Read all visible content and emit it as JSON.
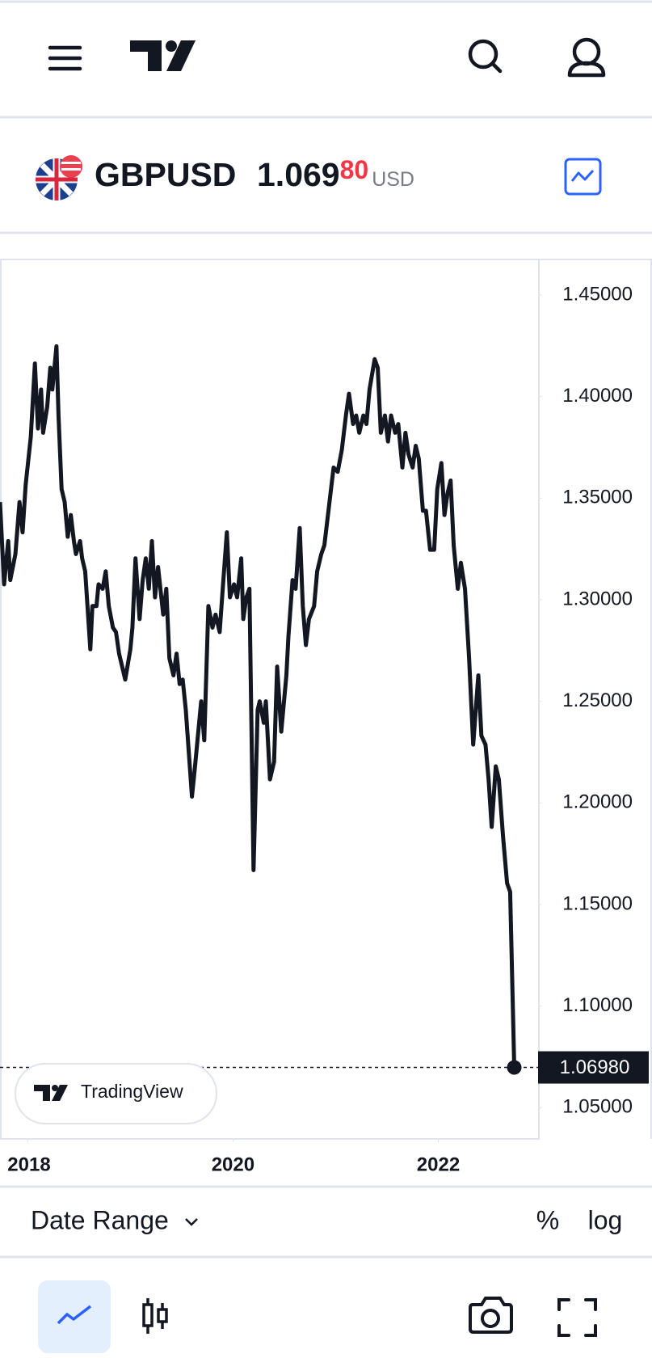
{
  "header": {
    "ticker": "GBPUSD",
    "price_main": "1.069",
    "price_highlight": "80",
    "currency": "USD"
  },
  "chart_data": {
    "type": "line",
    "x": [
      2017.73,
      2017.77,
      2017.81,
      2017.83,
      2017.88,
      2017.92,
      2017.95,
      2017.98,
      2018.03,
      2018.07,
      2018.1,
      2018.13,
      2018.15,
      2018.19,
      2018.22,
      2018.24,
      2018.28,
      2018.3,
      2018.33,
      2018.36,
      2018.39,
      2018.42,
      2018.45,
      2018.47,
      2018.51,
      2018.53,
      2018.56,
      2018.61,
      2018.63,
      2018.67,
      2018.69,
      2018.73,
      2018.76,
      2018.79,
      2018.83,
      2018.86,
      2018.89,
      2018.95,
      2019.0,
      2019.02,
      2019.05,
      2019.09,
      2019.12,
      2019.15,
      2019.18,
      2019.21,
      2019.24,
      2019.27,
      2019.32,
      2019.35,
      2019.38,
      2019.42,
      2019.45,
      2019.48,
      2019.51,
      2019.54,
      2019.6,
      2019.63,
      2019.65,
      2019.69,
      2019.72,
      2019.76,
      2019.8,
      2019.83,
      2019.87,
      2019.9,
      2019.94,
      2019.97,
      2020.01,
      2020.04,
      2020.08,
      2020.1,
      2020.13,
      2020.16,
      2020.2,
      2020.24,
      2020.26,
      2020.3,
      2020.32,
      2020.36,
      2020.4,
      2020.43,
      2020.47,
      2020.52,
      2020.54,
      2020.58,
      2020.61,
      2020.65,
      2020.68,
      2020.71,
      2020.74,
      2020.79,
      2020.82,
      2020.86,
      2020.89,
      2020.93,
      2020.95,
      2020.98,
      2021.02,
      2021.06,
      2021.1,
      2021.13,
      2021.17,
      2021.2,
      2021.23,
      2021.27,
      2021.3,
      2021.33,
      2021.38,
      2021.41,
      2021.44,
      2021.48,
      2021.51,
      2021.54,
      2021.58,
      2021.61,
      2021.65,
      2021.68,
      2021.71,
      2021.75,
      2021.78,
      2021.81,
      2021.85,
      2021.88,
      2021.92,
      2021.96,
      2021.99,
      2022.03,
      2022.06,
      2022.09,
      2022.12,
      2022.15,
      2022.19,
      2022.22,
      2022.26,
      2022.3,
      2022.34,
      2022.39,
      2022.42,
      2022.46,
      2022.49,
      2022.52,
      2022.56,
      2022.59,
      2022.63,
      2022.67,
      2022.7,
      2022.74
    ],
    "values": [
      1.3481,
      1.3076,
      1.3289,
      1.3097,
      1.3225,
      1.3481,
      1.3332,
      1.3566,
      1.3801,
      1.4163,
      1.3843,
      1.4035,
      1.3822,
      1.395,
      1.4142,
      1.4035,
      1.4248,
      1.3907,
      1.3545,
      1.3481,
      1.331,
      1.3417,
      1.3289,
      1.3225,
      1.3289,
      1.3204,
      1.314,
      1.2756,
      1.2969,
      1.2969,
      1.3076,
      1.3054,
      1.314,
      1.2969,
      1.2863,
      1.2841,
      1.2735,
      1.2607,
      1.2756,
      1.2863,
      1.3204,
      1.2905,
      1.3097,
      1.3204,
      1.3054,
      1.3289,
      1.3012,
      1.3161,
      1.2927,
      1.3054,
      1.2713,
      1.2628,
      1.2735,
      1.2585,
      1.2607,
      1.2458,
      1.2031,
      1.218,
      1.2287,
      1.25,
      1.2308,
      1.2969,
      1.2863,
      1.2927,
      1.2841,
      1.3054,
      1.3332,
      1.3012,
      1.3076,
      1.3012,
      1.3204,
      1.2905,
      1.3012,
      1.3054,
      1.1669,
      1.2458,
      1.25,
      1.2394,
      1.25,
      1.2116,
      1.2202,
      1.2671,
      1.2351,
      1.2628,
      1.282,
      1.3097,
      1.3054,
      1.3353,
      1.2969,
      1.2777,
      1.2905,
      1.2969,
      1.314,
      1.3225,
      1.3268,
      1.3438,
      1.3524,
      1.3651,
      1.363,
      1.3737,
      1.3907,
      1.4014,
      1.3865,
      1.3907,
      1.3822,
      1.3907,
      1.3865,
      1.4035,
      1.4184,
      1.4142,
      1.3822,
      1.3907,
      1.3779,
      1.3907,
      1.3822,
      1.3865,
      1.3651,
      1.3822,
      1.3715,
      1.3651,
      1.3758,
      1.3694,
      1.3438,
      1.3438,
      1.3246,
      1.3246,
      1.3545,
      1.3673,
      1.3417,
      1.3524,
      1.3587,
      1.3268,
      1.3054,
      1.3182,
      1.3054,
      1.2713,
      1.2287,
      1.2628,
      1.233,
      1.2287,
      1.2116,
      1.1882,
      1.218,
      1.2116,
      1.1839,
      1.1605,
      1.1562,
      1.0698
    ],
    "color": "#131722",
    "xlim": [
      2017.73,
      2022.98
    ],
    "xticks": [
      2018,
      2020,
      2022
    ],
    "ylim": [
      1.0346,
      1.4675
    ],
    "yticks": [
      {
        "value": 1.05,
        "label": "1.05000"
      },
      {
        "value": 1.1,
        "label": "1.10000"
      },
      {
        "value": 1.15,
        "label": "1.15000"
      },
      {
        "value": 1.2,
        "label": "1.20000"
      },
      {
        "value": 1.25,
        "label": "1.25000"
      },
      {
        "value": 1.3,
        "label": "1.30000"
      },
      {
        "value": 1.35,
        "label": "1.35000"
      },
      {
        "value": 1.4,
        "label": "1.40000"
      },
      {
        "value": 1.45,
        "label": "1.45000"
      }
    ],
    "price_line": {
      "value": 1.0698,
      "label": "1.06980"
    },
    "watermark": "TradingView"
  },
  "toolbar": {
    "date_range": "Date Range",
    "percent": "%",
    "log": "log"
  }
}
